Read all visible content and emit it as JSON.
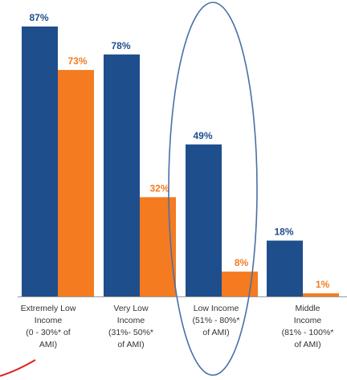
{
  "chart_data": {
    "type": "bar",
    "categories": [
      [
        "Extremely Low",
        "Income",
        "(0 - 30%* of",
        "AMI)"
      ],
      [
        "Very Low",
        "Income",
        "(31%- 50%*",
        "of AMI)"
      ],
      [
        "Low Income",
        "(51% - 80%*",
        "of AMI)"
      ],
      [
        "Middle",
        "Income",
        "(81% - 100%*",
        "of AMI)"
      ]
    ],
    "series": [
      {
        "values": [
          87,
          78,
          49,
          18
        ],
        "labels": [
          "87%",
          "78%",
          "49%",
          "18%"
        ],
        "color": "#1f4e8c"
      },
      {
        "values": [
          73,
          32,
          8,
          1
        ],
        "labels": [
          "73%",
          "32%",
          "8%",
          "1%"
        ],
        "color": "#f47b20"
      }
    ],
    "ylim": [
      0,
      87
    ],
    "grid": false,
    "annotations": {
      "ellipse_color": "#4a6fa8",
      "ellipse_target_category_index": 2,
      "stroke_color": "#e02020"
    }
  }
}
